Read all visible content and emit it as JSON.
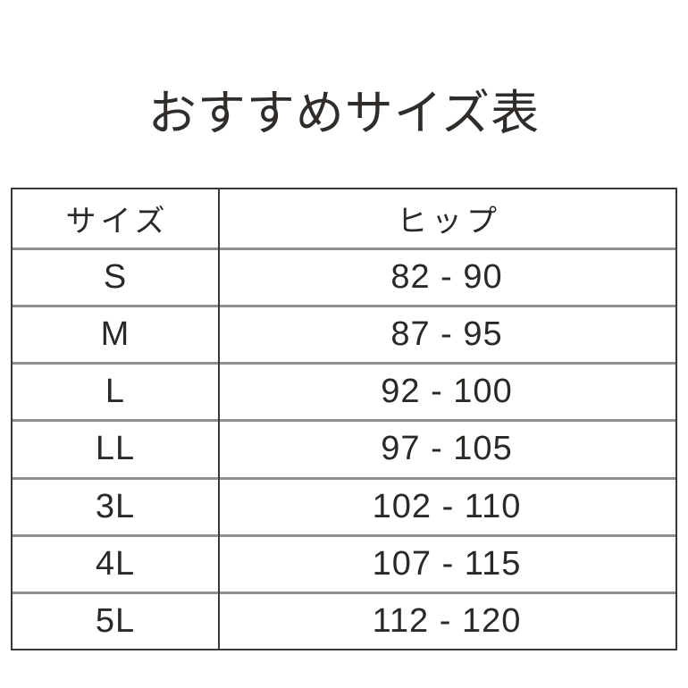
{
  "title": "おすすめサイズ表",
  "table": {
    "headers": [
      "サイズ",
      "ヒップ"
    ],
    "rows": [
      {
        "size": "S",
        "hip": "82 - 90"
      },
      {
        "size": "M",
        "hip": "87 - 95"
      },
      {
        "size": "L",
        "hip": "92 - 100"
      },
      {
        "size": "LL",
        "hip": "97 - 105"
      },
      {
        "size": "3L",
        "hip": "102 - 110"
      },
      {
        "size": "4L",
        "hip": "107 - 115"
      },
      {
        "size": "5L",
        "hip": "112 - 120"
      }
    ]
  },
  "colors": {
    "background": "#ffffff",
    "text": "#2b2926",
    "outer_border": "#3a3835",
    "row_separator": "#8f8f8f"
  },
  "chart_data": {
    "type": "table",
    "title": "おすすめサイズ表",
    "columns": [
      "サイズ",
      "ヒップ"
    ],
    "rows": [
      [
        "S",
        "82 - 90"
      ],
      [
        "M",
        "87 - 95"
      ],
      [
        "L",
        "92 - 100"
      ],
      [
        "LL",
        "97 - 105"
      ],
      [
        "3L",
        "102 - 110"
      ],
      [
        "4L",
        "107 - 115"
      ],
      [
        "5L",
        "112 - 120"
      ]
    ],
    "hip_ranges": [
      {
        "size": "S",
        "min": 82,
        "max": 90
      },
      {
        "size": "M",
        "min": 87,
        "max": 95
      },
      {
        "size": "L",
        "min": 92,
        "max": 100
      },
      {
        "size": "LL",
        "min": 97,
        "max": 105
      },
      {
        "size": "3L",
        "min": 102,
        "max": 110
      },
      {
        "size": "4L",
        "min": 107,
        "max": 115
      },
      {
        "size": "5L",
        "min": 112,
        "max": 120
      }
    ]
  }
}
